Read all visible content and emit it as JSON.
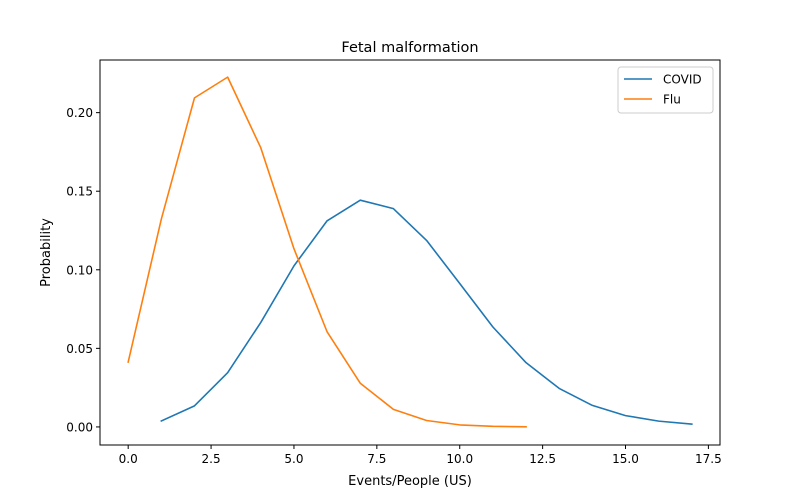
{
  "chart_data": {
    "type": "line",
    "title": "Fetal malformation",
    "xlabel": "Events/People (US)",
    "ylabel": "Probability",
    "xlim": [
      -0.85,
      17.85
    ],
    "ylim": [
      -0.0115,
      0.2335
    ],
    "xticks": [
      0.0,
      2.5,
      5.0,
      7.5,
      10.0,
      12.5,
      15.0,
      17.5
    ],
    "xtick_labels": [
      "0.0",
      "2.5",
      "5.0",
      "7.5",
      "10.0",
      "12.5",
      "15.0",
      "17.5"
    ],
    "yticks": [
      0.0,
      0.05,
      0.1,
      0.15,
      0.2
    ],
    "ytick_labels": [
      "0.00",
      "0.05",
      "0.10",
      "0.15",
      "0.20"
    ],
    "grid": false,
    "legend": {
      "placement": "upper right",
      "entries": [
        "COVID",
        "Flu"
      ]
    },
    "series": [
      {
        "name": "COVID",
        "color": "#1f77b4",
        "x": [
          1,
          2,
          3,
          4,
          5,
          6,
          7,
          8,
          9,
          10,
          11,
          12,
          13,
          14,
          15,
          16,
          17
        ],
        "values": [
          0.0038,
          0.0134,
          0.0345,
          0.0665,
          0.1025,
          0.1312,
          0.1443,
          0.1389,
          0.1187,
          0.0913,
          0.0636,
          0.0409,
          0.0245,
          0.0137,
          0.0072,
          0.0037,
          0.0018
        ]
      },
      {
        "name": "Flu",
        "color": "#ff7f0e",
        "x": [
          0,
          1,
          2,
          3,
          4,
          5,
          6,
          7,
          8,
          9,
          10,
          11,
          12
        ],
        "values": [
          0.0413,
          0.1323,
          0.2094,
          0.2226,
          0.1776,
          0.1134,
          0.0605,
          0.0278,
          0.0112,
          0.0041,
          0.0013,
          0.0004,
          0.0001
        ]
      }
    ]
  }
}
